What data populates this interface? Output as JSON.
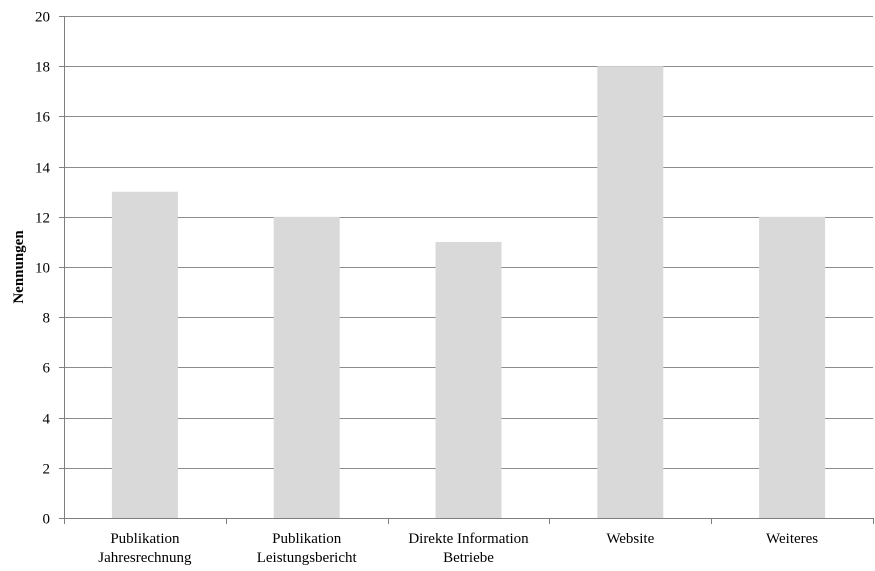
{
  "chart_data": {
    "type": "bar",
    "title": "",
    "xlabel": "",
    "ylabel": "Nennungen",
    "categories": [
      [
        "Publikation",
        "Jahresrechnung"
      ],
      [
        "Publikation",
        "Leistungsbericht"
      ],
      [
        "Direkte Information",
        "Betriebe"
      ],
      [
        "Website"
      ],
      [
        "Weiteres"
      ]
    ],
    "values": [
      13,
      12,
      11,
      18,
      12
    ],
    "ylim": [
      0,
      20
    ],
    "yticks": [
      0,
      2,
      4,
      6,
      8,
      10,
      12,
      14,
      16,
      18,
      20
    ],
    "grid": true,
    "legend": "none",
    "bar_color": "#d9d9d9",
    "grid_color": "#8c8c8c",
    "axis_color": "#7f7f7f"
  }
}
